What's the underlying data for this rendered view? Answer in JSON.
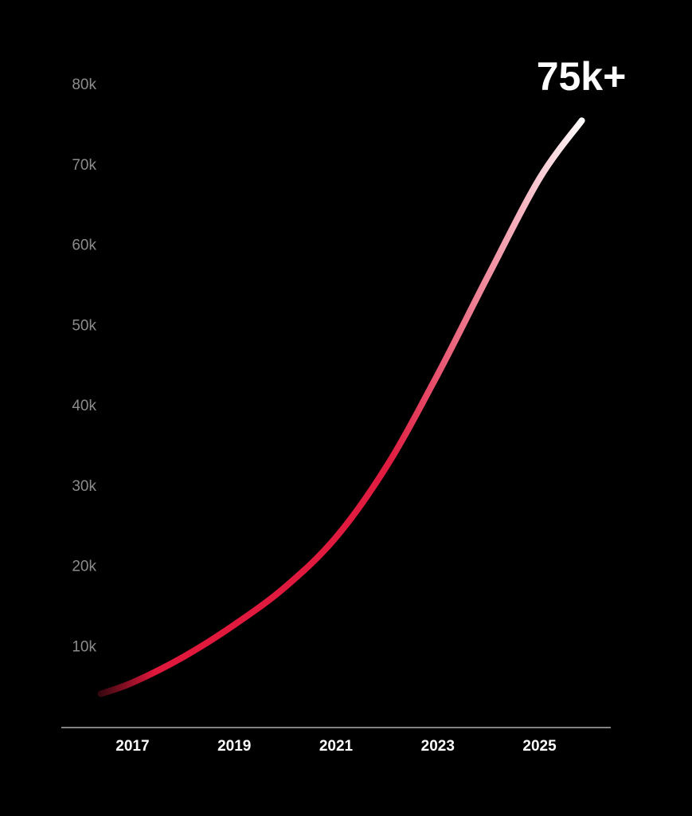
{
  "chart_data": {
    "type": "line",
    "annotation": "75k+",
    "x": [
      2016.375,
      2017,
      2018,
      2019,
      2020,
      2021,
      2022,
      2023,
      2024,
      2025,
      2025.83
    ],
    "series": [
      {
        "colors": [
          "#2a060c",
          "#e0183c",
          "#e01c40",
          "#ffffff"
        ],
        "values": [
          4200,
          5600,
          8800,
          12800,
          17500,
          23700,
          32600,
          44000,
          56400,
          68400,
          75600
        ]
      }
    ],
    "xlim": [
      2015.6,
      2026.4
    ],
    "xticks": [
      2017,
      2019,
      2021,
      2023,
      2025
    ],
    "ylim": [
      0,
      80000
    ],
    "yticks": [
      {
        "value": 10000,
        "label": "10k"
      },
      {
        "value": 20000,
        "label": "20k"
      },
      {
        "value": 30000,
        "label": "30k"
      },
      {
        "value": 40000,
        "label": "40k"
      },
      {
        "value": 50000,
        "label": "50k"
      },
      {
        "value": 60000,
        "label": "60k"
      },
      {
        "value": 70000,
        "label": "70k"
      },
      {
        "value": 80000,
        "label": "80k"
      }
    ],
    "grid": false
  }
}
